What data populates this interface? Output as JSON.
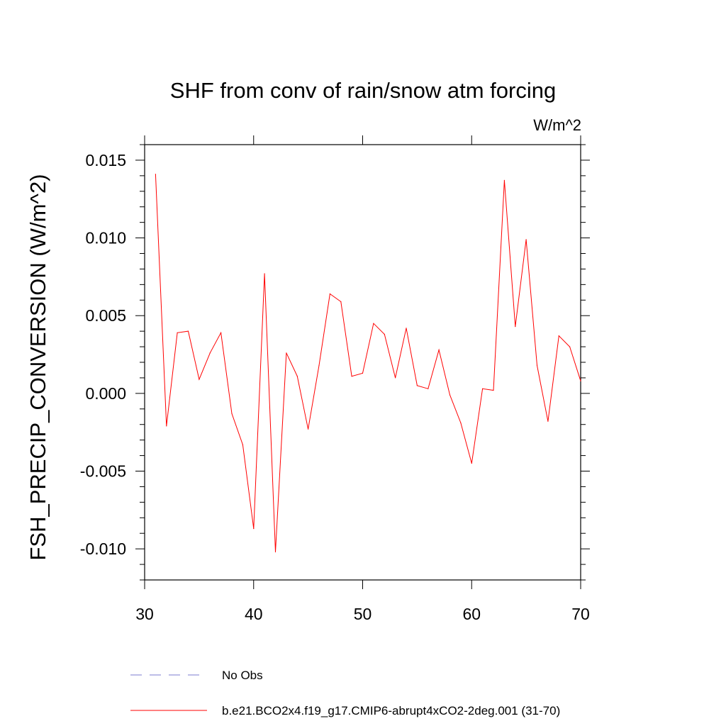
{
  "chart_data": {
    "type": "line",
    "title": "SHF from conv of rain/snow atm forcing",
    "units": "W/m^2",
    "ylabel": "FSH_PRECIP_CONVERSION  (W/m^2)",
    "xlabel": "",
    "xlim": [
      30,
      70
    ],
    "ylim": [
      -0.012,
      0.016
    ],
    "xticks": [
      30,
      40,
      50,
      60,
      70
    ],
    "xtick_labels": [
      "30",
      "40",
      "50",
      "60",
      "70"
    ],
    "yticks": [
      0.015,
      0.01,
      0.005,
      0.0,
      -0.005,
      -0.01
    ],
    "ytick_labels": [
      "0.015",
      "0.010",
      "0.005",
      "0.000",
      "-0.005",
      "-0.010"
    ],
    "grid": false,
    "legend_position": "bottom",
    "series": [
      {
        "name": "b.e21.BCO2x4.f19_g17.CMIP6-abrupt4xCO2-2deg.001 (31-70)",
        "color": "#ff0000",
        "style": "solid",
        "x": [
          31,
          32,
          33,
          34,
          35,
          36,
          37,
          38,
          39,
          40,
          41,
          42,
          43,
          44,
          45,
          46,
          47,
          48,
          49,
          50,
          51,
          52,
          53,
          54,
          55,
          56,
          57,
          58,
          59,
          60,
          61,
          62,
          63,
          64,
          65,
          66,
          67,
          68,
          69,
          70
        ],
        "y": [
          0.0141,
          -0.0021,
          0.0039,
          0.004,
          0.0009,
          0.0026,
          0.0039,
          -0.0013,
          -0.0033,
          -0.0087,
          0.0077,
          -0.0102,
          0.0026,
          0.0011,
          -0.0023,
          0.0018,
          0.0064,
          0.0059,
          0.0011,
          0.0013,
          0.0045,
          0.0038,
          0.001,
          0.0042,
          0.0005,
          0.0003,
          0.0028,
          -0.0001,
          -0.0019,
          -0.0045,
          0.0003,
          0.0002,
          0.0137,
          0.0043,
          0.0099,
          0.0018,
          -0.0018,
          0.0037,
          0.003,
          0.0008
        ]
      }
    ],
    "legend": [
      {
        "label": "No Obs",
        "color": "#7b7bd1",
        "style": "dashed"
      },
      {
        "label": "b.e21.BCO2x4.f19_g17.CMIP6-abrupt4xCO2-2deg.001 (31-70)",
        "color": "#ff0000",
        "style": "solid"
      }
    ]
  }
}
